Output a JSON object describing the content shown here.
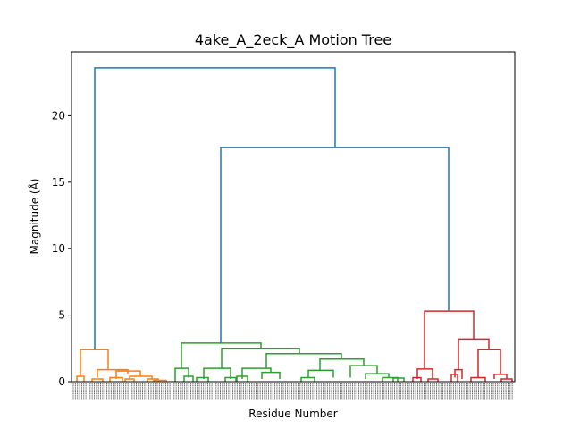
{
  "chart_data": {
    "type": "dendrogram",
    "title": "4ake_A_2eck_A Motion Tree",
    "xlabel": "Residue Number",
    "ylabel": "Magnitude (Å)",
    "ylim": [
      0,
      24.8
    ],
    "yticks": [
      "0",
      "5",
      "10",
      "15",
      "20"
    ],
    "ytick_values": [
      0,
      5,
      10,
      15,
      20
    ],
    "grid": false,
    "colors": {
      "root": "#1f77b4",
      "cluster_orange": "#ff7f0e",
      "cluster_green": "#2ca02c",
      "cluster_red": "#d62728"
    },
    "main_merges": [
      {
        "name": "root",
        "height": 23.6,
        "children": [
          "orange-cluster",
          "green+red"
        ]
      },
      {
        "name": "green+red",
        "height": 17.6,
        "children": [
          "green-cluster",
          "red-cluster"
        ]
      }
    ],
    "clusters": [
      {
        "name": "orange-cluster",
        "color": "cluster_orange",
        "top_height": 2.4,
        "sub_merges": [
          2.4,
          0.9,
          0.8,
          0.55,
          0.4,
          0.3,
          0.2
        ]
      },
      {
        "name": "green-cluster",
        "color": "cluster_green",
        "top_height": 2.9,
        "sub_merges": [
          2.9,
          2.5,
          2.1,
          1.7,
          1.2,
          1.0,
          1.0,
          1.0,
          0.85,
          0.7,
          0.6,
          0.4,
          0.3
        ]
      },
      {
        "name": "red-cluster",
        "color": "cluster_red",
        "top_height": 5.3,
        "sub_merges": [
          5.3,
          3.2,
          2.4,
          0.95,
          0.9,
          0.55,
          0.3,
          0.2
        ]
      }
    ]
  }
}
